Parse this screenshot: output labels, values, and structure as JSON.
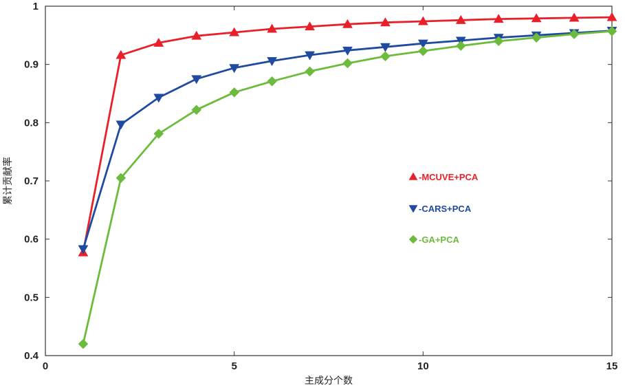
{
  "chart_data": {
    "type": "line",
    "title": "",
    "xlabel": "主成分个数",
    "ylabel": "累计贡献率",
    "xlim": [
      0,
      15
    ],
    "ylim": [
      0.4,
      1.0
    ],
    "xticks": [
      "0",
      "5",
      "10",
      "15"
    ],
    "yticks": [
      "0.4",
      "0.5",
      "0.6",
      "0.7",
      "0.8",
      "0.9",
      "1"
    ],
    "grid": false,
    "legend_position": "center-right",
    "x": [
      1,
      2,
      3,
      4,
      5,
      6,
      7,
      8,
      9,
      10,
      11,
      12,
      13,
      14,
      15
    ],
    "series": [
      {
        "name": "-MCUVE+PCA",
        "color": "#e8202a",
        "marker": "triangle-up",
        "values": [
          0.577,
          0.916,
          0.937,
          0.949,
          0.955,
          0.961,
          0.965,
          0.969,
          0.972,
          0.974,
          0.976,
          0.978,
          0.979,
          0.98,
          0.981
        ]
      },
      {
        "name": "-CARS+PCA",
        "color": "#1f4aa0",
        "marker": "triangle-down",
        "values": [
          0.583,
          0.797,
          0.843,
          0.875,
          0.894,
          0.906,
          0.916,
          0.924,
          0.93,
          0.936,
          0.941,
          0.946,
          0.95,
          0.954,
          0.958
        ]
      },
      {
        "name": "-GA+PCA",
        "color": "#6cbb3c",
        "marker": "diamond",
        "values": [
          0.42,
          0.705,
          0.781,
          0.822,
          0.852,
          0.871,
          0.888,
          0.902,
          0.914,
          0.923,
          0.932,
          0.94,
          0.946,
          0.952,
          0.957
        ]
      }
    ]
  }
}
